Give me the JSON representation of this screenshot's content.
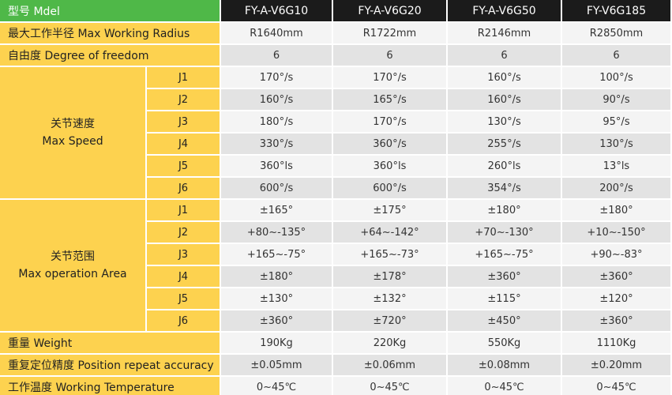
{
  "header": {
    "label": "型号 Mdel",
    "models": [
      "FY-A-V6G10",
      "FY-A-V6G20",
      "FY-A-V6G50",
      "FY-V6G185"
    ]
  },
  "rows": [
    {
      "label": "最大工作半径  Max Working Radius",
      "values": [
        "R1640mm",
        "R1722mm",
        "R2146mm",
        "R2850mm"
      ]
    },
    {
      "label": "自由度 Degree of freedom",
      "values": [
        "6",
        "6",
        "6",
        "6"
      ]
    },
    {
      "label_cn": "关节速度",
      "label_en": "Max Speed",
      "joints": [
        {
          "joint": "J1",
          "values": [
            "170°/s",
            "170°/s",
            "160°/s",
            "100°/s"
          ]
        },
        {
          "joint": "J2",
          "values": [
            "160°/s",
            "165°/s",
            "160°/s",
            "90°/s"
          ]
        },
        {
          "joint": "J3",
          "values": [
            "180°/s",
            "170°/s",
            "130°/s",
            "95°/s"
          ]
        },
        {
          "joint": "J4",
          "values": [
            "330°/s",
            "360°/s",
            "255°/s",
            "130°/s"
          ]
        },
        {
          "joint": "J5",
          "values": [
            "360°ls",
            "360°ls",
            "260°ls",
            "13°ls"
          ]
        },
        {
          "joint": "J6",
          "values": [
            "600°/s",
            "600°/s",
            "354°/s",
            "200°/s"
          ]
        }
      ]
    },
    {
      "label_cn": "关节范围",
      "label_en": "Max operation Area",
      "joints": [
        {
          "joint": "J1",
          "values": [
            "±165°",
            "±175°",
            "±180°",
            "±180°"
          ]
        },
        {
          "joint": "J2",
          "values": [
            "+80~-135°",
            "+64~-142°",
            "+70~-130°",
            "+10~-150°"
          ]
        },
        {
          "joint": "J3",
          "values": [
            "+165~-75°",
            "+165~-73°",
            "+165~-75°",
            "+90~-83°"
          ]
        },
        {
          "joint": "J4",
          "values": [
            "±180°",
            "±178°",
            "±360°",
            "±360°"
          ]
        },
        {
          "joint": "J5",
          "values": [
            "±130°",
            "±132°",
            "±115°",
            "±120°"
          ]
        },
        {
          "joint": "J6",
          "values": [
            "±360°",
            "±720°",
            "±450°",
            "±360°"
          ]
        }
      ]
    },
    {
      "label": "重量 Weight",
      "values": [
        "190Kg",
        "220Kg",
        "550Kg",
        "1110Kg"
      ]
    },
    {
      "label": "重复定位精度 Position repeat accuracy",
      "values": [
        "±0.05mm",
        "±0.06mm",
        "±0.08mm",
        "±0.20mm"
      ]
    },
    {
      "label": "工作温度 Working Temperature",
      "values": [
        "0~45℃",
        "0~45℃",
        "0~45℃",
        "0~45℃"
      ]
    }
  ]
}
